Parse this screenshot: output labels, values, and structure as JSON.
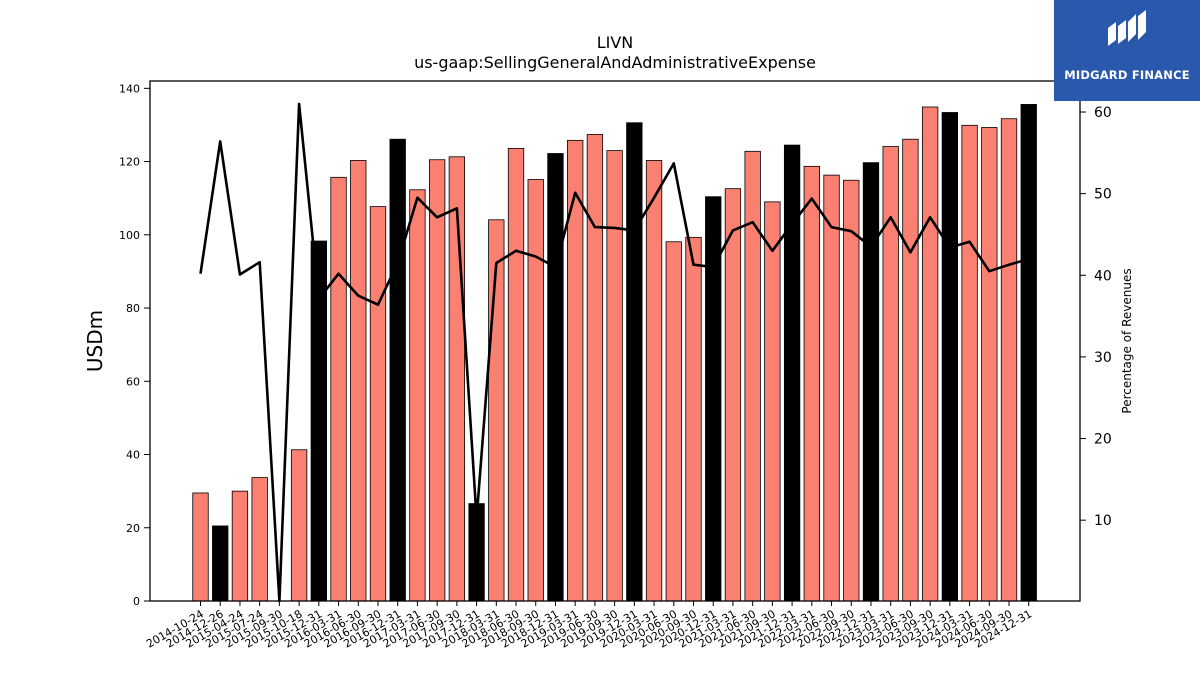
{
  "chart_data": {
    "type": "bar",
    "title": "LIVN",
    "subtitle": "us-gaap:SellingGeneralAndAdministrativeExpense",
    "ylabel": "USDm",
    "y2label": "Percentage of Revenues",
    "ylim": [
      0,
      142
    ],
    "y2lim": [
      0.1,
      63.8
    ],
    "yticks": [
      0,
      20,
      40,
      60,
      80,
      100,
      120,
      140
    ],
    "y2ticks": [
      10,
      20,
      30,
      40,
      50,
      60
    ],
    "categories": [
      "2014-10-24",
      "2014-12-26",
      "2015-04-24",
      "2015-07-24",
      "2015-09-30",
      "2015-10-18",
      "2015-12-31",
      "2016-03-31",
      "2016-06-30",
      "2016-09-30",
      "2016-12-31",
      "2017-03-31",
      "2017-06-30",
      "2017-09-30",
      "2017-12-31",
      "2018-03-31",
      "2018-06-30",
      "2018-09-30",
      "2018-12-31",
      "2019-03-31",
      "2019-06-30",
      "2019-09-30",
      "2019-12-31",
      "2020-03-31",
      "2020-06-30",
      "2020-09-30",
      "2020-12-31",
      "2021-03-31",
      "2021-06-30",
      "2021-09-30",
      "2021-12-31",
      "2022-03-31",
      "2022-06-30",
      "2022-09-30",
      "2022-12-31",
      "2023-03-31",
      "2023-06-30",
      "2023-09-30",
      "2023-12-31",
      "2024-03-31",
      "2024-06-30",
      "2024-09-30",
      "2024-12-31"
    ],
    "series": [
      {
        "type": "bar",
        "values": [
          29.5,
          20.5,
          30,
          33.7,
          0,
          41.3,
          98.3,
          115.7,
          120.3,
          107.7,
          126.1,
          112.3,
          120.5,
          121.3,
          26.6,
          104.1,
          123.6,
          115.1,
          122.2,
          125.8,
          127.4,
          123,
          130.6,
          120.3,
          98.1,
          99.3,
          110.4,
          112.6,
          122.8,
          109,
          124.5,
          118.7,
          116.3,
          114.9,
          119.7,
          124.1,
          126.1,
          134.9,
          133.4,
          129.9,
          129.3,
          131.7,
          135.6
        ],
        "highlight": [
          false,
          true,
          false,
          false,
          false,
          false,
          true,
          false,
          false,
          false,
          true,
          false,
          false,
          false,
          true,
          false,
          false,
          false,
          true,
          false,
          false,
          false,
          true,
          false,
          false,
          false,
          true,
          false,
          false,
          false,
          true,
          false,
          false,
          false,
          true,
          false,
          false,
          false,
          true,
          false,
          false,
          false,
          true
        ],
        "color": "#fa8072",
        "highlight_color": "#000000"
      },
      {
        "type": "line",
        "axis": "right",
        "values": [
          40.2,
          56.4,
          40.1,
          41.6,
          0.1,
          61,
          37.1,
          40.2,
          37.5,
          36.4,
          41.5,
          49.5,
          47.1,
          48.2,
          10.2,
          41.5,
          43,
          42.3,
          41,
          50.1,
          45.9,
          45.8,
          45.5,
          49.5,
          53.7,
          41.3,
          41,
          45.5,
          46.5,
          43,
          46.3,
          49.4,
          45.9,
          45.4,
          43.5,
          47.1,
          42.8,
          47.1,
          43.4,
          44.1,
          40.5,
          41.3,
          42
        ]
      }
    ]
  },
  "logo": {
    "text": "MIDGARD FINANCE"
  }
}
